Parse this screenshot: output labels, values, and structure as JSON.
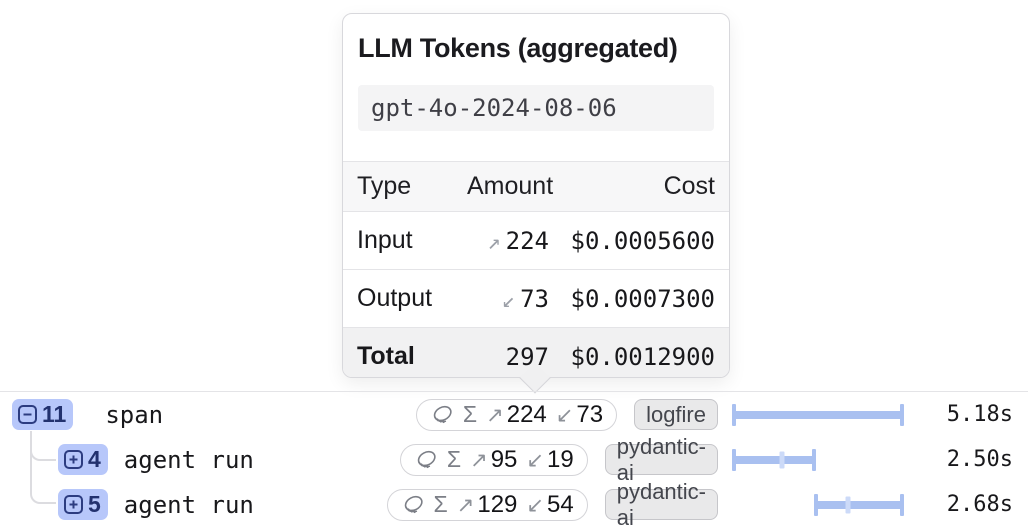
{
  "tooltip": {
    "title": "LLM Tokens (aggregated)",
    "model": "gpt-4o-2024-08-06",
    "table": {
      "headers": {
        "type": "Type",
        "amount": "Amount",
        "cost": "Cost"
      },
      "rows": [
        {
          "type": "Input",
          "arrow": "↗",
          "amount": "224",
          "cost": "$0.0005600"
        },
        {
          "type": "Output",
          "arrow": "↙",
          "amount": "73",
          "cost": "$0.0007300"
        },
        {
          "type": "Total",
          "arrow": "",
          "amount": "297",
          "cost": "$0.0012900"
        }
      ]
    }
  },
  "icons": {
    "sigma": "Σ",
    "input_arrow": "↗",
    "output_arrow": "↙"
  },
  "trace": {
    "rows": [
      {
        "toggle": "collapse",
        "count": "11",
        "label": "span",
        "input_tokens": "224",
        "output_tokens": "73",
        "tag": "logfire",
        "duration": "5.18s",
        "bar": {
          "start": 0,
          "end": 100,
          "tick": null
        }
      },
      {
        "toggle": "expand",
        "count": "4",
        "label": "agent run",
        "input_tokens": "95",
        "output_tokens": "19",
        "tag": "pydantic-ai",
        "duration": "2.50s",
        "bar": {
          "start": 0,
          "end": 48.3,
          "tick": 28.8
        }
      },
      {
        "toggle": "expand",
        "count": "5",
        "label": "agent run",
        "input_tokens": "129",
        "output_tokens": "54",
        "tag": "pydantic-ai",
        "duration": "2.68s",
        "bar": {
          "start": 48.3,
          "end": 100,
          "tick": 67.6
        }
      }
    ]
  },
  "colors": {
    "badge_bg": "#b7c7fa",
    "badge_text": "#22316e",
    "bar_fill": "#a9c0f0",
    "bar_tick": "#ccdaf8",
    "tag_bg": "#e9e9ea",
    "tag_border": "#c6c6ca",
    "pill_border": "#d4d4d8",
    "muted_icon": "#8e9299",
    "separator": "#e4e4e7",
    "header_bg": "#f7f7f8",
    "total_row_bg": "#f1f1f2",
    "model_box_bg": "#f4f4f5"
  }
}
